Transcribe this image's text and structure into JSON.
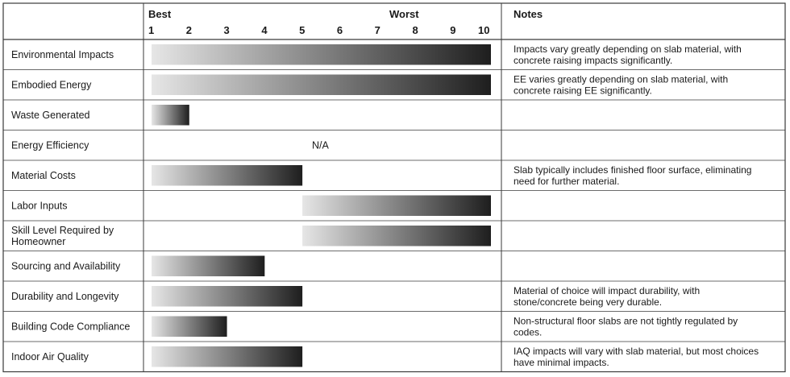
{
  "chart_data": {
    "type": "bar",
    "header": {
      "best_label": "Best",
      "worst_label": "Worst",
      "notes_label": "Notes"
    },
    "scale": [
      1,
      2,
      3,
      4,
      5,
      6,
      7,
      8,
      9,
      10
    ],
    "xlim": [
      1,
      10
    ],
    "colors": {
      "gradient_start": "#e6e6e6",
      "gradient_end": "#1e1e1e",
      "border": "#3a3a3a"
    },
    "rows": [
      {
        "label": [
          "Environmental Impacts"
        ],
        "start": 1,
        "end": 10,
        "value_text": "",
        "notes": [
          "Impacts vary greatly depending on slab material, with",
          "concrete raising impacts significantly."
        ]
      },
      {
        "label": [
          "Embodied Energy"
        ],
        "start": 1,
        "end": 10,
        "value_text": "",
        "notes": [
          "EE varies greatly depending on slab material, with",
          "concrete raising EE significantly."
        ]
      },
      {
        "label": [
          "Waste Generated"
        ],
        "start": 1,
        "end": 2,
        "value_text": "",
        "notes": []
      },
      {
        "label": [
          "Energy Efficiency"
        ],
        "start": null,
        "end": null,
        "value_text": "N/A",
        "notes": []
      },
      {
        "label": [
          "Material Costs"
        ],
        "start": 1,
        "end": 5,
        "value_text": "",
        "notes": [
          "Slab typically includes finished floor surface, eliminating",
          "need for further material."
        ]
      },
      {
        "label": [
          "Labor Inputs"
        ],
        "start": 5,
        "end": 10,
        "value_text": "",
        "notes": []
      },
      {
        "label": [
          "Skill Level Required by",
          "Homeowner"
        ],
        "start": 5,
        "end": 10,
        "value_text": "",
        "notes": []
      },
      {
        "label": [
          "Sourcing and Availability"
        ],
        "start": 1,
        "end": 4,
        "value_text": "",
        "notes": []
      },
      {
        "label": [
          "Durability and Longevity"
        ],
        "start": 1,
        "end": 5,
        "value_text": "",
        "notes": [
          "Material of choice will impact durability, with",
          "stone/concrete being very durable."
        ]
      },
      {
        "label": [
          "Building Code Compliance"
        ],
        "start": 1,
        "end": 3,
        "value_text": "",
        "notes": [
          "Non-structural floor slabs are not tightly regulated by",
          "codes."
        ]
      },
      {
        "label": [
          "Indoor Air Quality"
        ],
        "start": 1,
        "end": 5,
        "value_text": "",
        "notes": [
          "IAQ impacts will vary with slab material, but most choices",
          "have minimal impacts."
        ]
      }
    ]
  }
}
